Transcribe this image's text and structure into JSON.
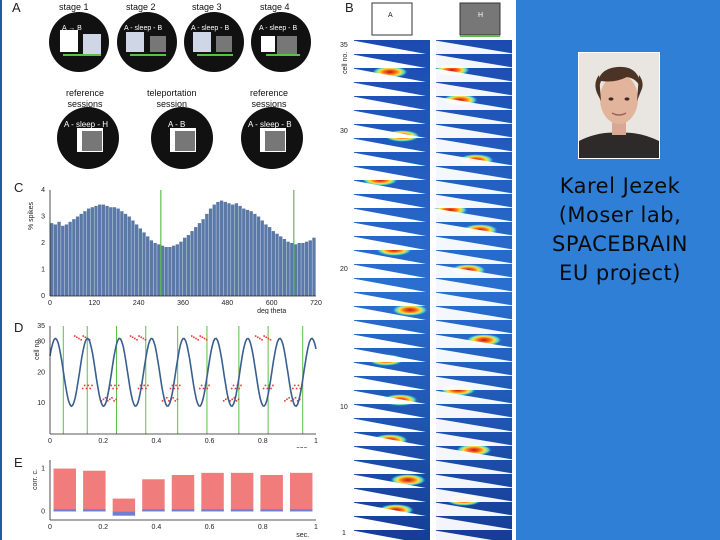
{
  "panels": {
    "a": {
      "letter": "A",
      "stages": [
        "stage 1",
        "stage 2",
        "stage 3",
        "stage 4"
      ],
      "stage_boxes": [
        "A → B",
        "A - sleep - B",
        "A - sleep - B",
        "A - sleep - B"
      ],
      "session_labels": [
        "reference\nsessions",
        "teleportation\nsession",
        "reference\nsessions"
      ],
      "session_boxes": [
        "A - sleep - H",
        "A - B",
        "A - sleep - B"
      ]
    },
    "b": {
      "letter": "B",
      "box_left": "A",
      "box_right": "H",
      "ylabel": "cell no.",
      "yticks": [
        "35",
        "30",
        "20",
        "10",
        "1"
      ]
    },
    "c": {
      "letter": "C",
      "ylabel": "% spikes",
      "xlabel": "deg theta"
    },
    "d": {
      "letter": "D",
      "ylabel": "cell no.",
      "xlabel": "sec."
    },
    "e": {
      "letter": "E",
      "ylabel": "corr. c.",
      "xlabel": "sec."
    }
  },
  "chart_data": [
    {
      "type": "bar",
      "panel": "C",
      "xlabel": "deg theta",
      "ylabel": "% spikes",
      "xticks": [
        "0",
        "120",
        "240",
        "360",
        "480",
        "600",
        "720"
      ],
      "yticks": [
        "0",
        "1",
        "2",
        "3",
        "4"
      ],
      "xlim": [
        0,
        720
      ],
      "ylim": [
        0,
        4
      ],
      "vlines": [
        300,
        660
      ],
      "values": [
        2.75,
        2.7,
        2.8,
        2.65,
        2.7,
        2.8,
        2.9,
        3.0,
        3.1,
        3.2,
        3.3,
        3.35,
        3.4,
        3.45,
        3.45,
        3.4,
        3.35,
        3.35,
        3.3,
        3.2,
        3.1,
        3.0,
        2.85,
        2.7,
        2.55,
        2.4,
        2.25,
        2.1,
        2.0,
        1.95,
        1.9,
        1.85,
        1.85,
        1.9,
        1.95,
        2.05,
        2.2,
        2.3,
        2.45,
        2.6,
        2.75,
        2.9,
        3.1,
        3.3,
        3.45,
        3.55,
        3.6,
        3.55,
        3.5,
        3.45,
        3.5,
        3.4,
        3.3,
        3.25,
        3.2,
        3.1,
        3.0,
        2.85,
        2.7,
        2.6,
        2.45,
        2.35,
        2.25,
        2.15,
        2.05,
        2.0,
        1.95,
        2.0,
        2.0,
        2.05,
        2.1,
        2.2
      ]
    },
    {
      "type": "line",
      "panel": "D",
      "xlabel": "sec.",
      "ylabel": "cell no.",
      "xticks": [
        "0",
        "0.2",
        "0.4",
        "0.6",
        "0.8",
        "1"
      ],
      "yticks": [
        "10",
        "20",
        "30",
        "35"
      ],
      "xlim": [
        0,
        1
      ],
      "ylim": [
        0,
        35
      ],
      "vlines": [
        0.05,
        0.14,
        0.25,
        0.36,
        0.48,
        0.59,
        0.71,
        0.82,
        0.95
      ],
      "wave": {
        "mean": 20,
        "amplitude": 11,
        "cycles_per_sec": 8.3,
        "phase": 0.5
      }
    },
    {
      "type": "bar",
      "panel": "E",
      "xlabel": "sec.",
      "ylabel": "corr. c.",
      "xticks": [
        "0",
        "0.2",
        "0.4",
        "0.6",
        "0.8",
        "1"
      ],
      "yticks": [
        "0",
        "1"
      ],
      "ylim": [
        -0.2,
        1.2
      ],
      "series": [
        {
          "values": [
            1.0,
            0.95,
            0.3,
            0.75,
            0.85,
            0.9,
            0.9,
            0.85,
            0.9
          ]
        },
        {
          "values": [
            0.05,
            0.05,
            -0.1,
            0.05,
            0.05,
            0.05,
            0.05,
            0.05,
            0.05
          ]
        }
      ]
    }
  ],
  "caption": {
    "lines": [
      "Karel Jezek",
      "(Moser lab,",
      "SPACEBRAIN",
      "EU project)"
    ]
  },
  "colors": {
    "slide_bg": "#2f7fd6",
    "bar_blue": "#5a78a8",
    "wave": "#3a5f8f",
    "green_line": "#5bbf4a",
    "corr_red": "#f07c7c",
    "corr_blue": "#6f7fd0"
  }
}
